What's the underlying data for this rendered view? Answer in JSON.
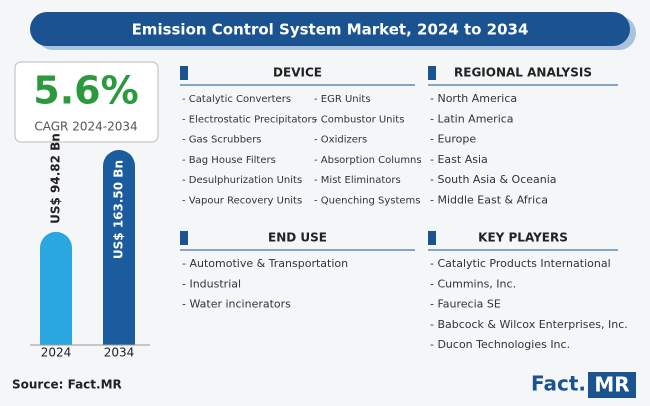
{
  "title": "Emission Control System Market, 2024 to 2034",
  "cagr": {
    "value": "5.6%",
    "label": "CAGR 2024-2034"
  },
  "chart_data": {
    "type": "bar",
    "categories": [
      "2024",
      "2034"
    ],
    "values": [
      94.82,
      163.5
    ],
    "value_labels": [
      "US$ 94.82 Bn",
      "US$ 163.50 Bn"
    ],
    "colors": [
      "#2aa7e1",
      "#1b5c9e"
    ]
  },
  "sections": [
    {
      "title": "DEVICE",
      "columns": [
        [
          "- Catalytic Converters",
          "- Electrostatic Precipitators",
          "- Gas Scrubbers",
          "- Bag House Filters",
          "- Desulphurization Units",
          "- Vapour Recovery Units"
        ],
        [
          "- EGR Units",
          "- Combustor Units",
          "- Oxidizers",
          "- Absorption Columns",
          "- Mist Eliminators",
          "- Quenching Systems"
        ]
      ]
    },
    {
      "title": "REGIONAL ANALYSIS",
      "columns": [
        [
          "- North America",
          "- Latin America",
          "- Europe",
          "- East Asia",
          "- South Asia & Oceania",
          "- Middle East & Africa"
        ]
      ]
    },
    {
      "title": "END USE",
      "columns": [
        [
          "- Automotive & Transportation",
          "- Industrial",
          "- Water incinerators"
        ]
      ]
    },
    {
      "title": "KEY PLAYERS",
      "columns": [
        [
          "- Catalytic Products International",
          "- Cummins, Inc.",
          "- Faurecia SE",
          "- Babcock & Wilcox Enterprises, Inc.",
          "- Ducon Technologies Inc."
        ]
      ]
    }
  ],
  "source": "Source: Fact.MR",
  "logo": {
    "main": "Fact.",
    "accent": "MR"
  }
}
